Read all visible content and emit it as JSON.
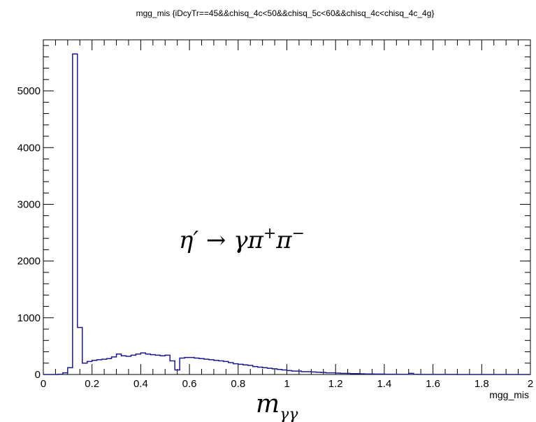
{
  "chart_data": {
    "type": "histogram",
    "title": "mgg_mis {iDcyTr==45&&chisq_4c<50&&chisq_5c<60&&chisq_4c<chisq_4c_4g}",
    "xlabel": "mgg_mis",
    "ylabel": "",
    "xlim": [
      0,
      2
    ],
    "ylim": [
      0,
      5900
    ],
    "bin_width": 0.02,
    "xticks": [
      0,
      0.2,
      0.4,
      0.6,
      0.8,
      1,
      1.2,
      1.4,
      1.6,
      1.8,
      2
    ],
    "xtick_labels": [
      "0",
      "0.2",
      "0.4",
      "0.6",
      "0.8",
      "1",
      "1.2",
      "1.4",
      "1.6",
      "1.8",
      "2"
    ],
    "yticks": [
      0,
      1000,
      2000,
      3000,
      4000,
      5000
    ],
    "ytick_labels": [
      "0",
      "1000",
      "2000",
      "3000",
      "4000",
      "5000"
    ],
    "line_color": "#1a1a8c",
    "grid": false,
    "legend": false,
    "bins_x_start": [
      0.0,
      0.02,
      0.04,
      0.06,
      0.08,
      0.1,
      0.12,
      0.14,
      0.16,
      0.18,
      0.2,
      0.22,
      0.24,
      0.26,
      0.28,
      0.3,
      0.32,
      0.34,
      0.36,
      0.38,
      0.4,
      0.42,
      0.44,
      0.46,
      0.48,
      0.5,
      0.52,
      0.54,
      0.56,
      0.58,
      0.6,
      0.62,
      0.64,
      0.66,
      0.68,
      0.7,
      0.72,
      0.74,
      0.76,
      0.78,
      0.8,
      0.82,
      0.84,
      0.86,
      0.88,
      0.9,
      0.92,
      0.94,
      0.96,
      0.98,
      1.0,
      1.02,
      1.04,
      1.06,
      1.08,
      1.1,
      1.12,
      1.14,
      1.16,
      1.18,
      1.2,
      1.22,
      1.24,
      1.26,
      1.28,
      1.3,
      1.32,
      1.34,
      1.36,
      1.38,
      1.4,
      1.42,
      1.44,
      1.46,
      1.48,
      1.5,
      1.52,
      1.54,
      1.56,
      1.58,
      1.6,
      1.62,
      1.64,
      1.66,
      1.68,
      1.7,
      1.72,
      1.74,
      1.76,
      1.78,
      1.8,
      1.82,
      1.84,
      1.86,
      1.88,
      1.9,
      1.92,
      1.94,
      1.96,
      1.98
    ],
    "values": [
      0,
      0,
      0,
      5,
      30,
      120,
      5650,
      830,
      200,
      230,
      250,
      260,
      270,
      280,
      310,
      360,
      330,
      320,
      340,
      360,
      380,
      360,
      350,
      340,
      330,
      340,
      240,
      80,
      290,
      300,
      300,
      290,
      280,
      270,
      260,
      250,
      240,
      230,
      210,
      190,
      180,
      170,
      160,
      140,
      130,
      120,
      110,
      100,
      90,
      80,
      70,
      60,
      60,
      50,
      50,
      45,
      40,
      35,
      30,
      30,
      25,
      20,
      20,
      15,
      15,
      12,
      10,
      10,
      8,
      8,
      5,
      5,
      5,
      3,
      3,
      20,
      3,
      2,
      2,
      2,
      2,
      1,
      1,
      1,
      1,
      0,
      0,
      0,
      0,
      0,
      0,
      0,
      0,
      0,
      0,
      0,
      0,
      0,
      0,
      0
    ],
    "annotations": [
      "η′ → γπ⁺π⁻",
      "mγγ"
    ]
  }
}
